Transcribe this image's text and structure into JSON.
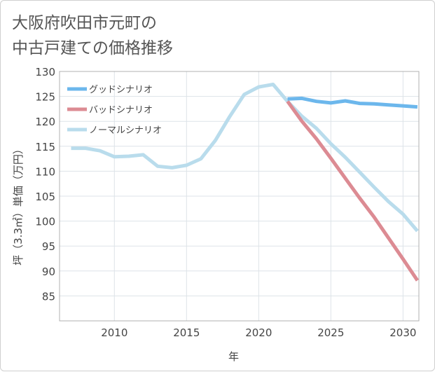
{
  "chart_title": "大阪府吹田市元町の\n中古戸建ての価格推移",
  "chart_data": {
    "type": "line",
    "title": "大阪府吹田市元町の中古戸建ての価格推移",
    "xlabel": "年",
    "ylabel": "坪（3.3㎡）単価（万円）",
    "xlim": [
      2006.2,
      2031.1
    ],
    "ylim": [
      80,
      130
    ],
    "xticks": [
      2010,
      2015,
      2020,
      2025,
      2030
    ],
    "yticks": [
      85,
      90,
      95,
      100,
      105,
      110,
      115,
      120,
      125,
      130
    ],
    "grid": true,
    "legend_position": "top-left",
    "series": [
      {
        "name": "ノーマルシナリオ",
        "color": "#b9dcec",
        "x": [
          2007,
          2008,
          2009,
          2010,
          2011,
          2012,
          2013,
          2014,
          2015,
          2016,
          2017,
          2018,
          2019,
          2020,
          2021,
          2022,
          2023,
          2024,
          2025,
          2026,
          2027,
          2028,
          2029,
          2030,
          2031
        ],
        "y": [
          114.6,
          114.6,
          114.1,
          112.9,
          113.0,
          113.3,
          111.0,
          110.7,
          111.2,
          112.5,
          116.2,
          121.0,
          125.4,
          126.9,
          127.4,
          124.0,
          121.0,
          118.6,
          115.5,
          112.8,
          109.8,
          106.8,
          103.9,
          101.4,
          98.0
        ]
      },
      {
        "name": "グッドシナリオ",
        "color": "#6cb7ec",
        "x": [
          2022,
          2023,
          2024,
          2025,
          2026,
          2027,
          2028,
          2029,
          2030,
          2031
        ],
        "y": [
          124.5,
          124.6,
          124.0,
          123.7,
          124.1,
          123.6,
          123.5,
          123.3,
          123.1,
          122.9
        ]
      },
      {
        "name": "バッドシナリオ",
        "color": "#dc8b93",
        "x": [
          2022,
          2023,
          2024,
          2025,
          2026,
          2027,
          2028,
          2029,
          2030,
          2031
        ],
        "y": [
          124.0,
          120.0,
          116.5,
          112.6,
          108.6,
          104.6,
          100.8,
          96.6,
          92.4,
          88.1
        ]
      }
    ],
    "legend": [
      "グッドシナリオ",
      "バッドシナリオ",
      "ノーマルシナリオ"
    ]
  }
}
